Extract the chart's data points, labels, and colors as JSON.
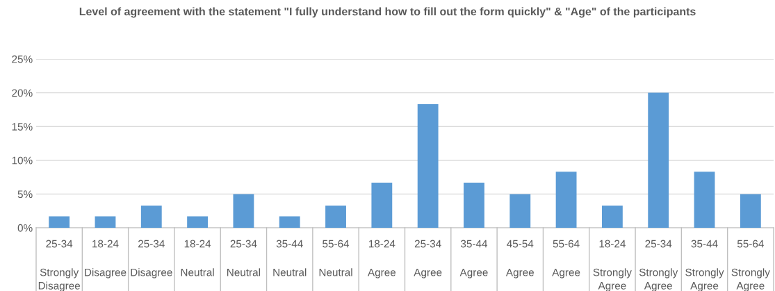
{
  "chart_data": {
    "type": "bar",
    "title": "Level of agreement with the statement \"I fully understand how to fill out the form quickly\" & \"Age\" of the participants",
    "categories": [
      "25-34\nStrongly\nDisagree",
      "18-24\nDisagree",
      "25-34\nDisagree",
      "18-24\nNeutral",
      "25-34\nNeutral",
      "35-44\nNeutral",
      "55-64\nNeutral",
      "18-24\nAgree",
      "25-34\nAgree",
      "35-44\nAgree",
      "45-54\nAgree",
      "55-64\nAgree",
      "18-24\nStrongly\nAgree",
      "25-34\nStrongly\nAgree",
      "35-44\nStrongly\nAgree",
      "55-64\nStrongly\nAgree"
    ],
    "values": [
      1.7,
      1.7,
      3.3,
      1.7,
      5,
      1.7,
      3.3,
      6.7,
      18.3,
      6.7,
      5,
      8.3,
      3.3,
      20,
      8.3,
      5
    ],
    "color": "#5b9bd5",
    "ylim": [
      0,
      25
    ],
    "yticks": [
      {
        "value": 0,
        "label": "0%"
      },
      {
        "value": 5,
        "label": "5%"
      },
      {
        "value": 10,
        "label": "10%"
      },
      {
        "value": 15,
        "label": "15%"
      },
      {
        "value": 20,
        "label": "20%"
      },
      {
        "value": 25,
        "label": "25%"
      }
    ],
    "grid": "y"
  }
}
